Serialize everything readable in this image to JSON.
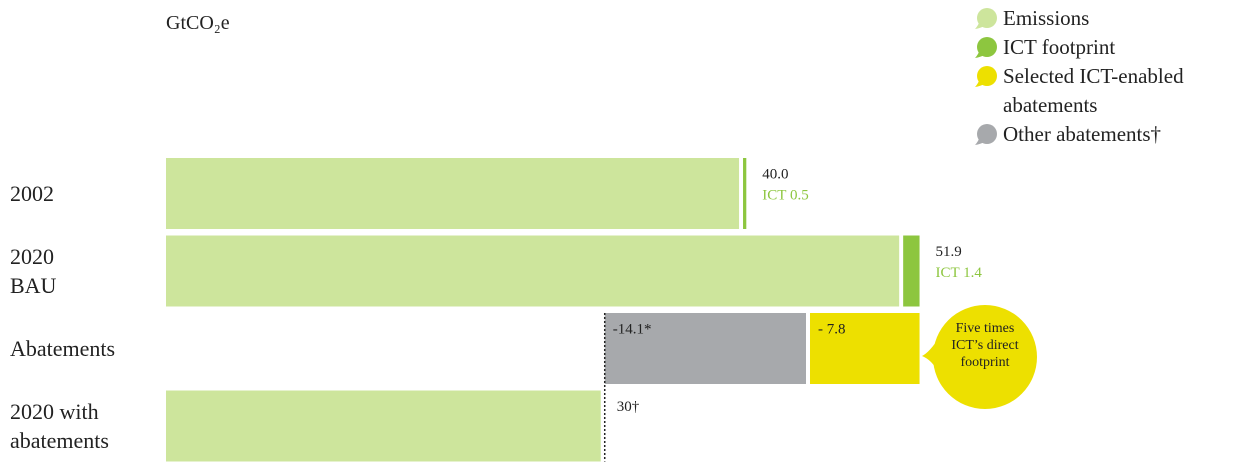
{
  "chart_data": {
    "type": "waterfall-bar",
    "unit_label": "GtCO₂e",
    "categories": [
      "2002",
      "2020 BAU",
      "Abatements",
      "2020 with abatements"
    ],
    "series": [
      {
        "name": "Emissions",
        "color": "#cde59c",
        "values": [
          39.5,
          50.5,
          null,
          30
        ]
      },
      {
        "name": "ICT footprint",
        "color": "#8dc63f",
        "values": [
          0.5,
          1.4,
          null,
          null
        ],
        "value_labels": [
          "ICT 0.5",
          "ICT 1.4",
          null,
          null
        ]
      },
      {
        "name": "Selected ICT-enabled abatements",
        "color": "#ede000",
        "values": [
          null,
          null,
          -7.8,
          null
        ],
        "value_labels": [
          null,
          null,
          "- 7.8",
          null
        ]
      },
      {
        "name": "Other abatements†",
        "color": "#a7a9ac",
        "values": [
          null,
          null,
          -14.1,
          null
        ],
        "value_labels": [
          null,
          null,
          "-14.1*",
          null
        ]
      }
    ],
    "totals": [
      40.0,
      51.9,
      null,
      30
    ],
    "total_labels": [
      "40.0",
      "51.9",
      null,
      "30†"
    ],
    "xlim": [
      0,
      52
    ],
    "annotation": "Five times ICT’s direct footprint"
  }
}
